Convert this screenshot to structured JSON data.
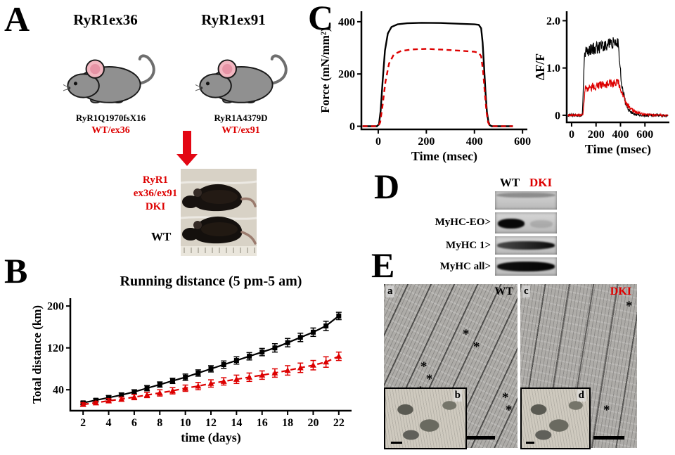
{
  "figure": {
    "panel_letters": {
      "A": "A",
      "B": "B",
      "C": "C",
      "D": "D",
      "E": "E"
    }
  },
  "panels": {
    "A": {
      "mouse1": {
        "title": "RyR1ex36",
        "genotype": "RyR1Q1970fsX16",
        "allele": "WT/ex36"
      },
      "mouse2": {
        "title": "RyR1ex91",
        "genotype": "RyR1A4379D",
        "allele": "WT/ex91"
      },
      "cross_label_lines": [
        "RyR1",
        "ex36/ex91",
        "DKI"
      ],
      "wt_label": "WT"
    },
    "D": {
      "lane_headers": [
        {
          "text": "WT",
          "color": "#000000"
        },
        {
          "text": "DKI",
          "color": "#dd0000"
        }
      ],
      "row_labels": [
        "MyHC-EO>",
        "MyHC 1>",
        "MyHC all>"
      ]
    },
    "E": {
      "images": [
        {
          "corner": "a",
          "label": "WT",
          "label_color": "#000000"
        },
        {
          "corner": "c",
          "label": "DKI",
          "label_color": "#dd0000"
        }
      ],
      "insets": [
        {
          "corner": "b"
        },
        {
          "corner": "d"
        }
      ],
      "asterisk": "*"
    }
  },
  "colors": {
    "wt": "#000000",
    "dki": "#dd0000",
    "arrow": "#e30613"
  },
  "chart_data": [
    {
      "id": "running",
      "type": "line",
      "title": "Running distance (5 pm-5 am)",
      "xlabel": "time (days)",
      "ylabel": "Total distance (km)",
      "x": [
        2,
        3,
        4,
        5,
        6,
        7,
        8,
        9,
        10,
        11,
        12,
        13,
        14,
        15,
        16,
        17,
        18,
        19,
        20,
        21,
        22
      ],
      "xticks": [
        2,
        4,
        6,
        8,
        10,
        12,
        14,
        16,
        18,
        20,
        22
      ],
      "yticks": [
        40,
        120,
        200
      ],
      "xlim": [
        1,
        23
      ],
      "ylim": [
        0,
        215
      ],
      "legend_position": "none",
      "grid": false,
      "series": [
        {
          "name": "WT",
          "color": "#000000",
          "style": "solid",
          "marker": "square",
          "values": [
            15,
            20,
            25,
            30,
            36,
            43,
            50,
            57,
            64,
            72,
            80,
            88,
            96,
            104,
            112,
            120,
            130,
            140,
            150,
            162,
            181
          ],
          "err": [
            3,
            3,
            4,
            4,
            4,
            5,
            5,
            5,
            6,
            6,
            6,
            7,
            7,
            7,
            7,
            8,
            8,
            8,
            8,
            9,
            7
          ]
        },
        {
          "name": "DKI",
          "color": "#dd0000",
          "style": "dashed",
          "marker": "triangle",
          "values": [
            12,
            15,
            19,
            22,
            26,
            30,
            34,
            38,
            43,
            47,
            52,
            56,
            60,
            64,
            68,
            72,
            77,
            82,
            87,
            93,
            104
          ],
          "err": [
            3,
            3,
            4,
            4,
            5,
            5,
            6,
            6,
            6,
            7,
            7,
            7,
            8,
            8,
            8,
            8,
            9,
            9,
            9,
            10,
            8
          ]
        }
      ]
    },
    {
      "id": "force",
      "type": "line",
      "xlabel": "Time (msec)",
      "ylabel": "Force (mN/mm²)",
      "xticks": [
        0,
        200,
        400,
        600
      ],
      "yticks": [
        0,
        200,
        400
      ],
      "xlim": [
        -70,
        620
      ],
      "ylim": [
        -12,
        440
      ],
      "grid": false,
      "series": [
        {
          "name": "WT",
          "color": "#000000",
          "style": "solid",
          "points": [
            [
              -65,
              0
            ],
            [
              -5,
              0
            ],
            [
              3,
              8
            ],
            [
              10,
              60
            ],
            [
              18,
              170
            ],
            [
              28,
              290
            ],
            [
              40,
              355
            ],
            [
              55,
              380
            ],
            [
              80,
              390
            ],
            [
              120,
              394
            ],
            [
              180,
              396
            ],
            [
              260,
              395
            ],
            [
              340,
              392
            ],
            [
              400,
              390
            ],
            [
              418,
              388
            ],
            [
              428,
              375
            ],
            [
              434,
              320
            ],
            [
              440,
              230
            ],
            [
              446,
              130
            ],
            [
              452,
              55
            ],
            [
              458,
              18
            ],
            [
              464,
              4
            ],
            [
              472,
              0
            ],
            [
              560,
              0
            ]
          ]
        },
        {
          "name": "DKI",
          "color": "#dd0000",
          "style": "dashed",
          "points": [
            [
              -65,
              0
            ],
            [
              0,
              0
            ],
            [
              8,
              15
            ],
            [
              18,
              80
            ],
            [
              30,
              170
            ],
            [
              45,
              240
            ],
            [
              65,
              275
            ],
            [
              95,
              288
            ],
            [
              140,
              294
            ],
            [
              200,
              296
            ],
            [
              270,
              293
            ],
            [
              340,
              289
            ],
            [
              400,
              285
            ],
            [
              418,
              281
            ],
            [
              428,
              268
            ],
            [
              436,
              210
            ],
            [
              443,
              130
            ],
            [
              450,
              55
            ],
            [
              457,
              15
            ],
            [
              464,
              2
            ],
            [
              472,
              0
            ],
            [
              560,
              0
            ]
          ]
        }
      ]
    },
    {
      "id": "fluo",
      "type": "line",
      "xlabel": "Time (msec)",
      "ylabel": "ΔF/F",
      "xticks": [
        0,
        200,
        400,
        600
      ],
      "yticks": [
        0,
        1,
        2
      ],
      "ytick_labels": [
        "0",
        "1.0",
        "2.0"
      ],
      "xlim": [
        -40,
        800
      ],
      "ylim": [
        -0.15,
        2.2
      ],
      "t_range": [
        -30,
        788
      ],
      "grid": false,
      "series": [
        {
          "name": "WT",
          "color": "#000000",
          "baseline": 0,
          "rise_start": 88,
          "rise_end": 106,
          "start_val": 1.35,
          "end_val": 1.55,
          "fall_start": 382,
          "tau": 34,
          "noise_base": 0.025,
          "noise_plateau": 0.13,
          "seed": 7
        },
        {
          "name": "DKI",
          "color": "#dd0000",
          "baseline": 0,
          "rise_start": 92,
          "rise_end": 112,
          "start_val": 0.58,
          "end_val": 0.7,
          "fall_start": 386,
          "tau": 60,
          "noise_base": 0.02,
          "noise_plateau": 0.085,
          "seed": 21
        }
      ]
    }
  ]
}
